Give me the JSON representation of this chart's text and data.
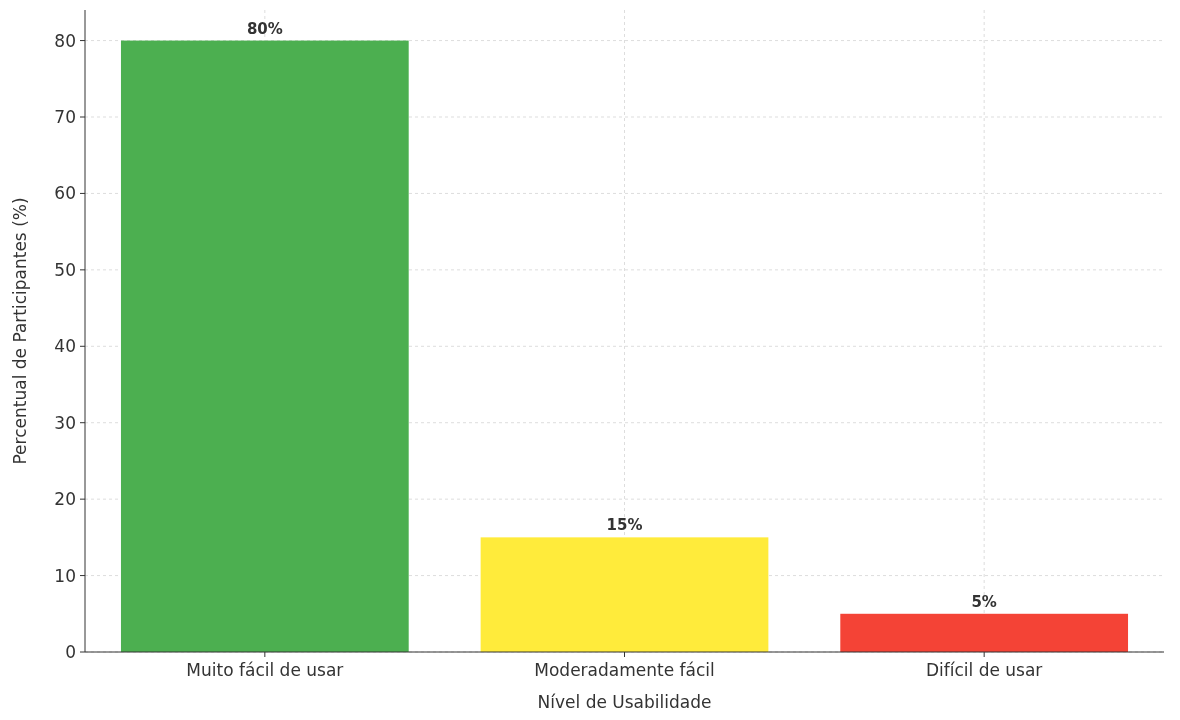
{
  "chart_data": {
    "type": "bar",
    "xlabel": "Nível de Usabilidade",
    "ylabel": "Percentual de Participantes (%)",
    "categories": [
      "Muito fácil de usar",
      "Moderadamente fácil",
      "Difícil de usar"
    ],
    "values": [
      80,
      15,
      5
    ],
    "colors": [
      "#4caf50",
      "#ffeb3b",
      "#f44336"
    ],
    "value_labels": [
      "80%",
      "15%",
      "5%"
    ],
    "ylim": [
      0,
      84
    ],
    "yticks": [
      0,
      10,
      20,
      30,
      40,
      50,
      60,
      70,
      80
    ],
    "grid": true
  }
}
